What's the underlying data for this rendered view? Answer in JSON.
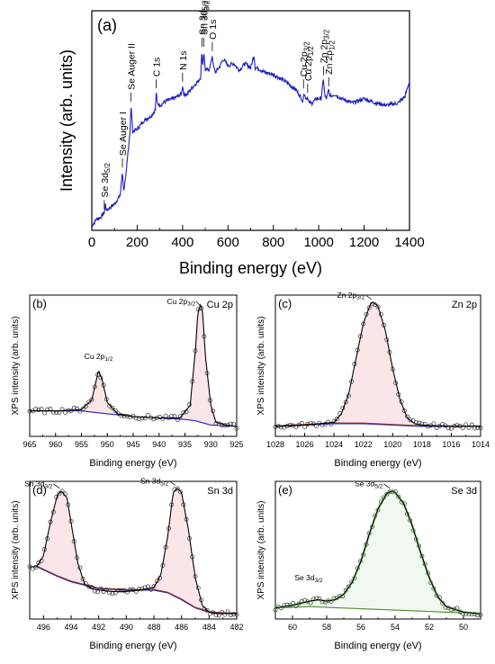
{
  "chart_data": [
    {
      "panel": "(a)",
      "type": "line",
      "title": "",
      "xlabel": "Binding energy (eV)",
      "ylabel": "Intensity (arb. units)",
      "xlim": [
        0,
        1400
      ],
      "xticks": [
        0,
        200,
        400,
        600,
        800,
        1000,
        1200,
        1400
      ],
      "y_ticks_shown": false,
      "grid": false,
      "series": [
        {
          "color": "#1f1fbf",
          "x": [
            0,
            20,
            40,
            55,
            60,
            65,
            75,
            100,
            125,
            135,
            140,
            150,
            160,
            168,
            173,
            180,
            200,
            230,
            260,
            280,
            284,
            288,
            300,
            330,
            360,
            395,
            400,
            405,
            420,
            450,
            470,
            480,
            485,
            489,
            493,
            500,
            515,
            525,
            531,
            537,
            545,
            560,
            580,
            600,
            625,
            650,
            675,
            700,
            715,
            720,
            730,
            760,
            800,
            850,
            900,
            925,
            930,
            933,
            940,
            945,
            951,
            957,
            970,
            990,
            1010,
            1021,
            1027,
            1035,
            1044,
            1050,
            1070,
            1100,
            1150,
            1200,
            1250,
            1300,
            1350,
            1380,
            1400
          ],
          "y": [
            0.02,
            0.05,
            0.06,
            0.08,
            0.12,
            0.09,
            0.1,
            0.12,
            0.16,
            0.27,
            0.18,
            0.24,
            0.36,
            0.45,
            0.57,
            0.45,
            0.46,
            0.5,
            0.52,
            0.55,
            0.63,
            0.58,
            0.57,
            0.59,
            0.6,
            0.62,
            0.66,
            0.62,
            0.62,
            0.66,
            0.68,
            0.7,
            0.82,
            0.74,
            0.82,
            0.73,
            0.73,
            0.76,
            0.8,
            0.74,
            0.72,
            0.74,
            0.78,
            0.75,
            0.76,
            0.73,
            0.76,
            0.74,
            0.8,
            0.74,
            0.74,
            0.72,
            0.71,
            0.68,
            0.64,
            0.6,
            0.58,
            0.63,
            0.61,
            0.6,
            0.61,
            0.58,
            0.58,
            0.6,
            0.6,
            0.69,
            0.61,
            0.6,
            0.64,
            0.61,
            0.62,
            0.6,
            0.58,
            0.6,
            0.58,
            0.57,
            0.58,
            0.61,
            0.68
          ]
        }
      ],
      "annotations": [
        {
          "text": "Se 3d5/2",
          "x": 55
        },
        {
          "text": "Se Auger I",
          "x": 135
        },
        {
          "text": "Se Auger II",
          "x": 173
        },
        {
          "text": "C 1s",
          "x": 284
        },
        {
          "text": "N 1s",
          "x": 400
        },
        {
          "text": "Sn 3d5/2",
          "x": 485
        },
        {
          "text": "Sn 3d3/2",
          "x": 493
        },
        {
          "text": "O 1s",
          "x": 531
        },
        {
          "text": "Cu 2p3/2",
          "x": 933
        },
        {
          "text": "Cu 2p1/2",
          "x": 951
        },
        {
          "text": "Zn 2p3/2",
          "x": 1021
        },
        {
          "text": "Zn 2p1/2",
          "x": 1044
        }
      ]
    },
    {
      "panel": "(b)",
      "type": "line",
      "title": "Cu 2p",
      "xlabel": "Binding energy (eV)",
      "ylabel": "XPS intensity (arb. units)",
      "xlim": [
        965,
        925
      ],
      "xticks": [
        965,
        960,
        955,
        950,
        945,
        940,
        935,
        930,
        925
      ],
      "y_ticks_shown": false,
      "envelope": {
        "x": [
          965,
          960,
          955,
          953,
          952,
          951.7,
          951,
          950,
          948,
          945,
          940,
          936,
          934,
          933,
          932.5,
          932,
          931.6,
          931,
          930,
          929,
          927,
          925
        ],
        "y": [
          0.18,
          0.18,
          0.19,
          0.26,
          0.42,
          0.47,
          0.4,
          0.24,
          0.16,
          0.14,
          0.13,
          0.13,
          0.22,
          0.6,
          0.88,
          0.93,
          0.88,
          0.55,
          0.22,
          0.1,
          0.08,
          0.07
        ]
      },
      "background": {
        "x": [
          965,
          955,
          950,
          945,
          940,
          935,
          933,
          930,
          925
        ],
        "y": [
          0.18,
          0.18,
          0.16,
          0.14,
          0.13,
          0.12,
          0.11,
          0.08,
          0.07
        ]
      },
      "annotations": [
        {
          "text": "Cu 2p1/2",
          "x": 951.7
        },
        {
          "text": "Cu 2p3/2",
          "x": 931.6
        }
      ]
    },
    {
      "panel": "(c)",
      "type": "line",
      "title": "Zn 2p",
      "xlabel": "Binding energy (eV)",
      "ylabel": "XPS intensity (arb. units)",
      "xlim": [
        1028,
        1014
      ],
      "xticks": [
        1028,
        1026,
        1024,
        1022,
        1020,
        1018,
        1016,
        1014
      ],
      "y_ticks_shown": false,
      "envelope": {
        "x": [
          1028,
          1026,
          1024,
          1023.5,
          1023,
          1022.5,
          1022,
          1021.5,
          1021.3,
          1021,
          1020.5,
          1020,
          1019.5,
          1019,
          1018.5,
          1018,
          1016,
          1014
        ],
        "y": [
          0.07,
          0.08,
          0.1,
          0.16,
          0.3,
          0.55,
          0.8,
          0.94,
          0.95,
          0.92,
          0.75,
          0.48,
          0.26,
          0.13,
          0.09,
          0.08,
          0.07,
          0.07
        ]
      },
      "background": {
        "x": [
          1028,
          1024,
          1022,
          1020,
          1018,
          1014
        ],
        "y": [
          0.07,
          0.09,
          0.09,
          0.08,
          0.07,
          0.07
        ]
      },
      "annotations": [
        {
          "text": "Zn 2p3/2",
          "x": 1021.3
        }
      ]
    },
    {
      "panel": "(d)",
      "type": "line",
      "title": "Sn 3d",
      "xlabel": "Binding energy (eV)",
      "ylabel": "XPS intensity (arb. units)",
      "xlim": [
        497,
        482
      ],
      "xticks": [
        496,
        494,
        492,
        490,
        488,
        486,
        484,
        482
      ],
      "y_ticks_shown": false,
      "envelope": {
        "x": [
          496.5,
          496,
          495.5,
          495,
          494.7,
          494.3,
          494,
          493.5,
          493,
          492.5,
          492,
          491,
          490,
          489,
          488,
          487.5,
          487,
          486.6,
          486.3,
          486,
          485.5,
          485,
          484.5,
          484,
          483.5,
          483,
          482
        ],
        "y": [
          0.38,
          0.46,
          0.7,
          0.9,
          0.93,
          0.88,
          0.7,
          0.4,
          0.25,
          0.22,
          0.21,
          0.2,
          0.2,
          0.21,
          0.23,
          0.32,
          0.6,
          0.92,
          0.95,
          0.92,
          0.65,
          0.3,
          0.1,
          0.05,
          0.04,
          0.04,
          0.04
        ]
      },
      "background": {
        "x": [
          496.5,
          495,
          494,
          492,
          490,
          488,
          487,
          486,
          485,
          484,
          483,
          482
        ],
        "y": [
          0.38,
          0.31,
          0.27,
          0.22,
          0.21,
          0.21,
          0.19,
          0.14,
          0.08,
          0.05,
          0.04,
          0.04
        ]
      },
      "annotations": [
        {
          "text": "Sn 3d3/2",
          "x": 494.7
        },
        {
          "text": "Sn 3d5/2",
          "x": 486.3
        }
      ]
    },
    {
      "panel": "(e)",
      "type": "line",
      "title": "Se 3d",
      "xlabel": "Binding energy (eV)",
      "ylabel": "XPS intensity (arb. units)",
      "xlim": [
        61,
        49
      ],
      "xticks": [
        60,
        58,
        56,
        54,
        52,
        50
      ],
      "y_ticks_shown": false,
      "envelope": {
        "x": [
          61,
          60,
          59,
          58.5,
          58,
          57.5,
          57,
          56.5,
          56,
          55.5,
          55,
          54.5,
          54.2,
          54,
          53.5,
          53,
          52.5,
          52,
          51.5,
          51,
          50,
          49.2
        ],
        "y": [
          0.08,
          0.1,
          0.13,
          0.14,
          0.13,
          0.14,
          0.18,
          0.27,
          0.42,
          0.62,
          0.8,
          0.91,
          0.93,
          0.92,
          0.84,
          0.68,
          0.48,
          0.3,
          0.16,
          0.09,
          0.05,
          0.04
        ]
      },
      "background": {
        "x": [
          61,
          59,
          57,
          55,
          53,
          51,
          49.2
        ],
        "y": [
          0.08,
          0.09,
          0.08,
          0.07,
          0.06,
          0.05,
          0.04
        ]
      },
      "annotations": [
        {
          "text": "Se 3d3/2",
          "x": 58.4
        },
        {
          "text": "Se 3d5/2",
          "x": 54.2
        }
      ]
    }
  ],
  "colors": {
    "survey_line": "#1f1fbf",
    "fit_envelope": "#000000",
    "background_line": "#2222cc",
    "shirley_background": "#8b2f1a",
    "data_markers": "#333333",
    "component_fill": "#f7d4d8",
    "se_component_line": "#88c878",
    "se_background": "#4e8c2e"
  }
}
